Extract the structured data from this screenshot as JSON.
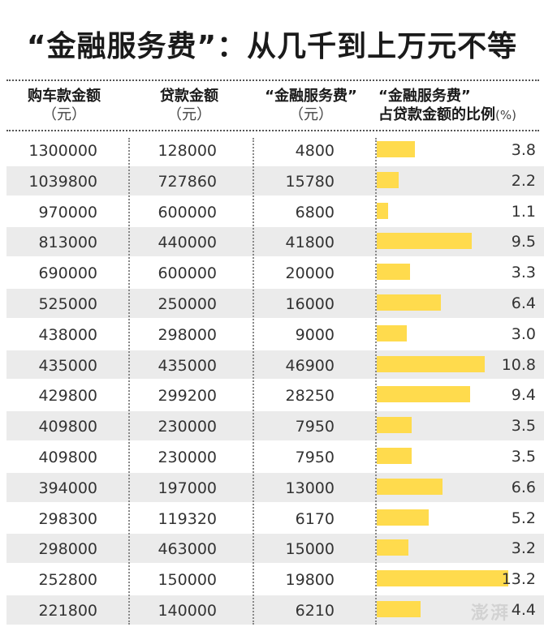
{
  "title": "“金融服务费”：从几千到上万元不等",
  "headers": {
    "col1": {
      "line1": "购车款金额",
      "line2": "（元）"
    },
    "col2": {
      "line1": "贷款金额",
      "line2": "（元）"
    },
    "col3": {
      "line1": "“金融服务费”",
      "line2": "（元）"
    },
    "col4": {
      "line1": "“金融服务费”",
      "line2": "占贷款金额的比例",
      "unit": "(%)"
    }
  },
  "watermark": "澎湃",
  "colors": {
    "bar": "#ffdb4d",
    "shade": "#ebebeb"
  },
  "chart_data": {
    "type": "table",
    "title": "“金融服务费”：从几千到上万元不等",
    "columns": [
      "购车款金额（元）",
      "贷款金额（元）",
      "“金融服务费”（元）",
      "“金融服务费”占贷款金额的比例(%)"
    ],
    "rows": [
      {
        "car_price": "1300000",
        "loan": "128000",
        "fee": "4800",
        "ratio": "3.8"
      },
      {
        "car_price": "1039800",
        "loan": "727860",
        "fee": "15780",
        "ratio": "2.2"
      },
      {
        "car_price": "970000",
        "loan": "600000",
        "fee": "6800",
        "ratio": "1.1"
      },
      {
        "car_price": "813000",
        "loan": "440000",
        "fee": "41800",
        "ratio": "9.5"
      },
      {
        "car_price": "690000",
        "loan": "600000",
        "fee": "20000",
        "ratio": "3.3"
      },
      {
        "car_price": "525000",
        "loan": "250000",
        "fee": "16000",
        "ratio": "6.4"
      },
      {
        "car_price": "438000",
        "loan": "298000",
        "fee": "9000",
        "ratio": "3.0"
      },
      {
        "car_price": "435000",
        "loan": "435000",
        "fee": "46900",
        "ratio": "10.8"
      },
      {
        "car_price": "429800",
        "loan": "299200",
        "fee": "28250",
        "ratio": "9.4"
      },
      {
        "car_price": "409800",
        "loan": "230000",
        "fee": "7950",
        "ratio": "3.5"
      },
      {
        "car_price": "409800",
        "loan": "230000",
        "fee": "7950",
        "ratio": "3.5"
      },
      {
        "car_price": "394000",
        "loan": "197000",
        "fee": "13000",
        "ratio": "6.6"
      },
      {
        "car_price": "298300",
        "loan": "119320",
        "fee": "6170",
        "ratio": "5.2"
      },
      {
        "car_price": "298000",
        "loan": "463000",
        "fee": "15000",
        "ratio": "3.2"
      },
      {
        "car_price": "252800",
        "loan": "150000",
        "fee": "19800",
        "ratio": "13.2"
      },
      {
        "car_price": "221800",
        "loan": "140000",
        "fee": "6210",
        "ratio": "4.4"
      }
    ]
  }
}
